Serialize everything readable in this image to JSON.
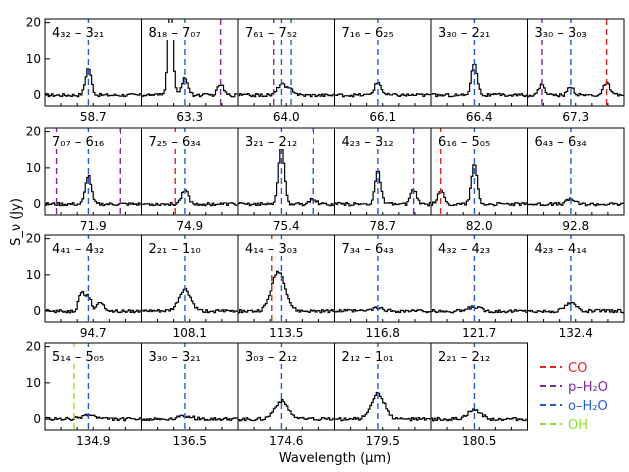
{
  "chart_data": {
    "type": "line",
    "ylabel": "S_ν (Jy)",
    "xlabel": "Wavelength (μm)",
    "ylim": [
      -3,
      21
    ],
    "yticks": [
      0,
      10,
      20
    ],
    "legend_position": "bottom-right",
    "legend": [
      {
        "key": "co",
        "label": "CO",
        "color": "#e8231f"
      },
      {
        "key": "ph2o",
        "label": "p–H₂O",
        "color": "#7a2aa8"
      },
      {
        "key": "oh2o",
        "label": "o–H₂O",
        "color": "#1f5be8"
      },
      {
        "key": "oh",
        "label": "OH",
        "color": "#8ee02a"
      }
    ],
    "panels": [
      {
        "label": "4₃₂ – 3₂₁",
        "wavelength": "58.7",
        "lines": [
          {
            "species": "oh2o",
            "pos": 0.45
          }
        ],
        "peaks": [
          {
            "pos": 0.45,
            "height": 7.5,
            "width": 0.03
          }
        ]
      },
      {
        "label": "8₁₈ – 7₀₇",
        "wavelength": "63.3",
        "lines": [
          {
            "species": "oh2o",
            "pos": 0.45
          },
          {
            "species": "ph2o",
            "pos": 0.82
          }
        ],
        "peaks": [
          {
            "pos": 0.3,
            "height": 26,
            "width": 0.025
          },
          {
            "pos": 0.45,
            "height": 5,
            "width": 0.03
          },
          {
            "pos": 0.82,
            "height": 3,
            "width": 0.03
          }
        ]
      },
      {
        "label": "7₆₁ – 7₅₂",
        "wavelength": "64.0",
        "lines": [
          {
            "species": "ph2o",
            "pos": 0.37
          },
          {
            "species": "oh2o",
            "pos": 0.45
          },
          {
            "species": "oh2o",
            "pos": 0.55
          }
        ],
        "peaks": [
          {
            "pos": 0.45,
            "height": 3,
            "width": 0.04
          },
          {
            "pos": 0.55,
            "height": 1.5,
            "width": 0.04
          }
        ]
      },
      {
        "label": "7₁₆ – 6₂₅",
        "wavelength": "66.1",
        "lines": [
          {
            "species": "oh2o",
            "pos": 0.45
          }
        ],
        "peaks": [
          {
            "pos": 0.45,
            "height": 3.5,
            "width": 0.035
          }
        ]
      },
      {
        "label": "3₃₀ – 2₂₁",
        "wavelength": "66.4",
        "lines": [
          {
            "species": "oh2o",
            "pos": 0.45
          }
        ],
        "peaks": [
          {
            "pos": 0.45,
            "height": 9,
            "width": 0.03
          }
        ]
      },
      {
        "label": "3₃₀ – 3₀₃",
        "wavelength": "67.3",
        "lines": [
          {
            "species": "ph2o",
            "pos": 0.15
          },
          {
            "species": "oh2o",
            "pos": 0.45
          },
          {
            "species": "co",
            "pos": 0.82
          }
        ],
        "peaks": [
          {
            "pos": 0.15,
            "height": 3,
            "width": 0.03
          },
          {
            "pos": 0.45,
            "height": 2.5,
            "width": 0.03
          },
          {
            "pos": 0.82,
            "height": 3.5,
            "width": 0.03
          }
        ]
      },
      {
        "label": "7₀₇ – 6₁₆",
        "wavelength": "71.9",
        "lines": [
          {
            "species": "ph2o",
            "pos": 0.12
          },
          {
            "species": "oh2o",
            "pos": 0.45
          },
          {
            "species": "ph2o",
            "pos": 0.78
          }
        ],
        "peaks": [
          {
            "pos": 0.45,
            "height": 8,
            "width": 0.03
          }
        ]
      },
      {
        "label": "7₂₅ – 6₃₄",
        "wavelength": "74.9",
        "lines": [
          {
            "species": "co",
            "pos": 0.35
          },
          {
            "species": "oh2o",
            "pos": 0.45
          }
        ],
        "peaks": [
          {
            "pos": 0.45,
            "height": 4,
            "width": 0.035
          }
        ]
      },
      {
        "label": "3₂₁ – 2₁₂",
        "wavelength": "75.4",
        "lines": [
          {
            "species": "oh2o",
            "pos": 0.45
          },
          {
            "species": "oh2o",
            "pos": 0.78
          }
        ],
        "peaks": [
          {
            "pos": 0.45,
            "height": 16,
            "width": 0.03
          },
          {
            "pos": 0.78,
            "height": 1.5,
            "width": 0.03
          }
        ]
      },
      {
        "label": "4₂₃ – 3₁₂",
        "wavelength": "78.7",
        "lines": [
          {
            "species": "oh2o",
            "pos": 0.45
          },
          {
            "species": "ph2o",
            "pos": 0.82
          }
        ],
        "peaks": [
          {
            "pos": 0.45,
            "height": 9,
            "width": 0.03
          },
          {
            "pos": 0.82,
            "height": 4,
            "width": 0.03
          }
        ]
      },
      {
        "label": "6₁₆ – 5₀₅",
        "wavelength": "82.0",
        "lines": [
          {
            "species": "co",
            "pos": 0.1
          },
          {
            "species": "oh2o",
            "pos": 0.45
          }
        ],
        "peaks": [
          {
            "pos": 0.1,
            "height": 4,
            "width": 0.03
          },
          {
            "pos": 0.45,
            "height": 11,
            "width": 0.03
          }
        ]
      },
      {
        "label": "6₄₃ – 6₃₄",
        "wavelength": "92.8",
        "lines": [
          {
            "species": "oh2o",
            "pos": 0.45
          }
        ],
        "peaks": [
          {
            "pos": 0.45,
            "height": 1.5,
            "width": 0.04
          }
        ]
      },
      {
        "label": "4₄₁ – 4₃₂",
        "wavelength": "94.7",
        "lines": [
          {
            "species": "oh2o",
            "pos": 0.45
          }
        ],
        "peaks": [
          {
            "pos": 0.38,
            "height": 5,
            "width": 0.03
          },
          {
            "pos": 0.45,
            "height": 4,
            "width": 0.03
          },
          {
            "pos": 0.58,
            "height": 2.5,
            "width": 0.035
          }
        ]
      },
      {
        "label": "2₂₁ – 1₁₀",
        "wavelength": "108.1",
        "lines": [
          {
            "species": "oh2o",
            "pos": 0.45
          }
        ],
        "peaks": [
          {
            "pos": 0.45,
            "height": 6,
            "width": 0.06
          }
        ]
      },
      {
        "label": "4₁₄ – 3₀₃",
        "wavelength": "113.5",
        "lines": [
          {
            "species": "co",
            "pos": 0.35
          },
          {
            "species": "oh2o",
            "pos": 0.45
          }
        ],
        "peaks": [
          {
            "pos": 0.42,
            "height": 11,
            "width": 0.07
          }
        ]
      },
      {
        "label": "7₃₄ – 6₄₃",
        "wavelength": "116.8",
        "lines": [
          {
            "species": "oh2o",
            "pos": 0.45
          }
        ],
        "peaks": [
          {
            "pos": 0.45,
            "height": 0.8,
            "width": 0.06
          }
        ]
      },
      {
        "label": "4₃₂ – 4₂₃",
        "wavelength": "121.7",
        "lines": [
          {
            "species": "oh2o",
            "pos": 0.45
          }
        ],
        "peaks": [
          {
            "pos": 0.45,
            "height": 1.2,
            "width": 0.06
          }
        ]
      },
      {
        "label": "4₂₃ – 4₁₄",
        "wavelength": "132.4",
        "lines": [
          {
            "species": "oh2o",
            "pos": 0.45
          }
        ],
        "peaks": [
          {
            "pos": 0.45,
            "height": 2.2,
            "width": 0.06
          }
        ]
      },
      {
        "label": "5₁₄ – 5₀₅",
        "wavelength": "134.9",
        "lines": [
          {
            "species": "oh",
            "pos": 0.3
          },
          {
            "species": "oh2o",
            "pos": 0.45
          }
        ],
        "peaks": [
          {
            "pos": 0.45,
            "height": 1.2,
            "width": 0.07
          }
        ]
      },
      {
        "label": "3₃₀ – 3₂₁",
        "wavelength": "136.5",
        "lines": [
          {
            "species": "oh2o",
            "pos": 0.45
          }
        ],
        "peaks": [
          {
            "pos": 0.45,
            "height": 1.0,
            "width": 0.07
          }
        ]
      },
      {
        "label": "3₀₃ – 2₁₂",
        "wavelength": "174.6",
        "lines": [
          {
            "species": "oh2o",
            "pos": 0.45
          }
        ],
        "peaks": [
          {
            "pos": 0.45,
            "height": 5,
            "width": 0.07
          }
        ]
      },
      {
        "label": "2₁₂ – 1₀₁",
        "wavelength": "179.5",
        "lines": [
          {
            "species": "oh2o",
            "pos": 0.45
          }
        ],
        "peaks": [
          {
            "pos": 0.45,
            "height": 7,
            "width": 0.07
          }
        ]
      },
      {
        "label": "2₂₁ – 2₁₂",
        "wavelength": "180.5",
        "lines": [
          {
            "species": "oh2o",
            "pos": 0.45
          }
        ],
        "peaks": [
          {
            "pos": 0.45,
            "height": 2.5,
            "width": 0.07
          }
        ]
      }
    ]
  }
}
